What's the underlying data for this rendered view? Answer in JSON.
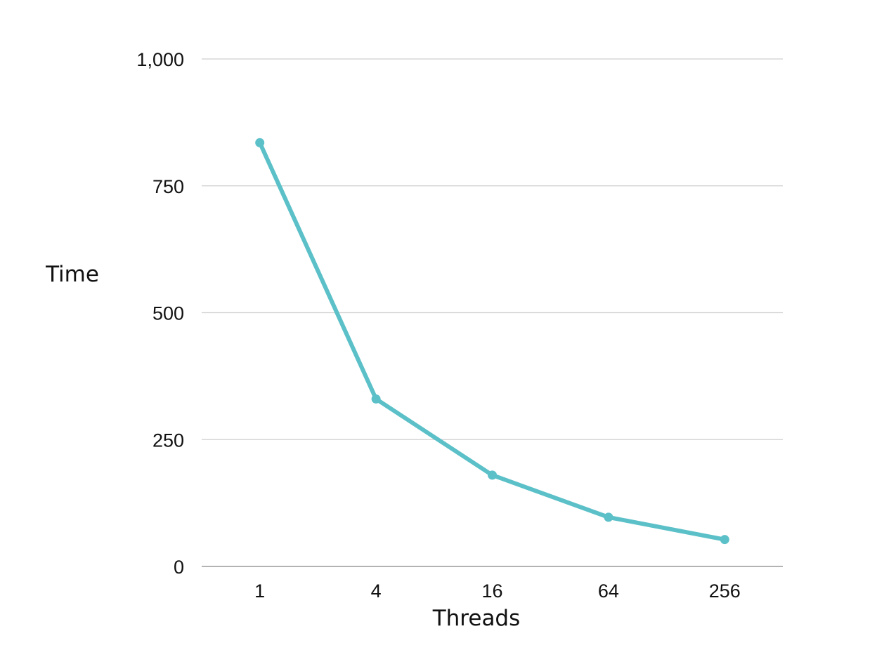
{
  "chart_data": {
    "type": "line",
    "title": "",
    "xlabel": "Threads",
    "ylabel": "Time",
    "categories": [
      "1",
      "4",
      "16",
      "64",
      "256"
    ],
    "series": [
      {
        "values": [
          835,
          330,
          180,
          97,
          53
        ]
      }
    ],
    "ylim": [
      0,
      1000
    ],
    "yticks": [
      0,
      250,
      500,
      750,
      1000
    ],
    "ytick_labels": [
      "0",
      "250",
      "500",
      "750",
      "1,000"
    ],
    "grid": true,
    "legend": "none",
    "colors": {
      "series": "#5bc0c8",
      "grid": "#cfcfcf",
      "axis": "#9a9a9a",
      "text": "#111111"
    }
  }
}
